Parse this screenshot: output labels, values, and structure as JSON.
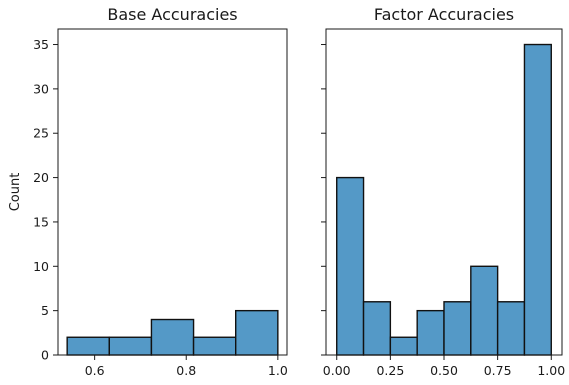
{
  "chart_data": [
    {
      "type": "bar",
      "subtype": "histogram",
      "title": "Base Accuracies",
      "xlabel": "",
      "ylabel": "Count",
      "xlim": [
        0.52,
        1.02
      ],
      "ylim": [
        0,
        36.75
      ],
      "xticks": [
        0.6,
        0.8,
        1.0
      ],
      "xtick_labels": [
        "0.6",
        "0.8",
        "1.0"
      ],
      "yticks": [
        0,
        5,
        10,
        15,
        20,
        25,
        30,
        35
      ],
      "ytick_labels": [
        "0",
        "5",
        "10",
        "15",
        "20",
        "25",
        "30",
        "35"
      ],
      "bin_edges": [
        0.54,
        0.632,
        0.724,
        0.816,
        0.908,
        1.0
      ],
      "counts": [
        2,
        2,
        4,
        2,
        5
      ],
      "color": "#5499c7"
    },
    {
      "type": "bar",
      "subtype": "histogram",
      "title": "Factor Accuracies",
      "xlabel": "",
      "ylabel": "",
      "xlim": [
        -0.05,
        1.05
      ],
      "ylim": [
        0,
        36.75
      ],
      "xticks": [
        0.0,
        0.25,
        0.5,
        0.75,
        1.0
      ],
      "xtick_labels": [
        "0.00",
        "0.25",
        "0.50",
        "0.75",
        "1.00"
      ],
      "yticks": [
        0,
        5,
        10,
        15,
        20,
        25,
        30,
        35
      ],
      "ytick_labels": [],
      "bin_edges": [
        0.0,
        0.125,
        0.25,
        0.375,
        0.5,
        0.625,
        0.75,
        0.875,
        1.0
      ],
      "counts": [
        20,
        6,
        2,
        5,
        6,
        10,
        6,
        35
      ],
      "color": "#5499c7"
    }
  ]
}
